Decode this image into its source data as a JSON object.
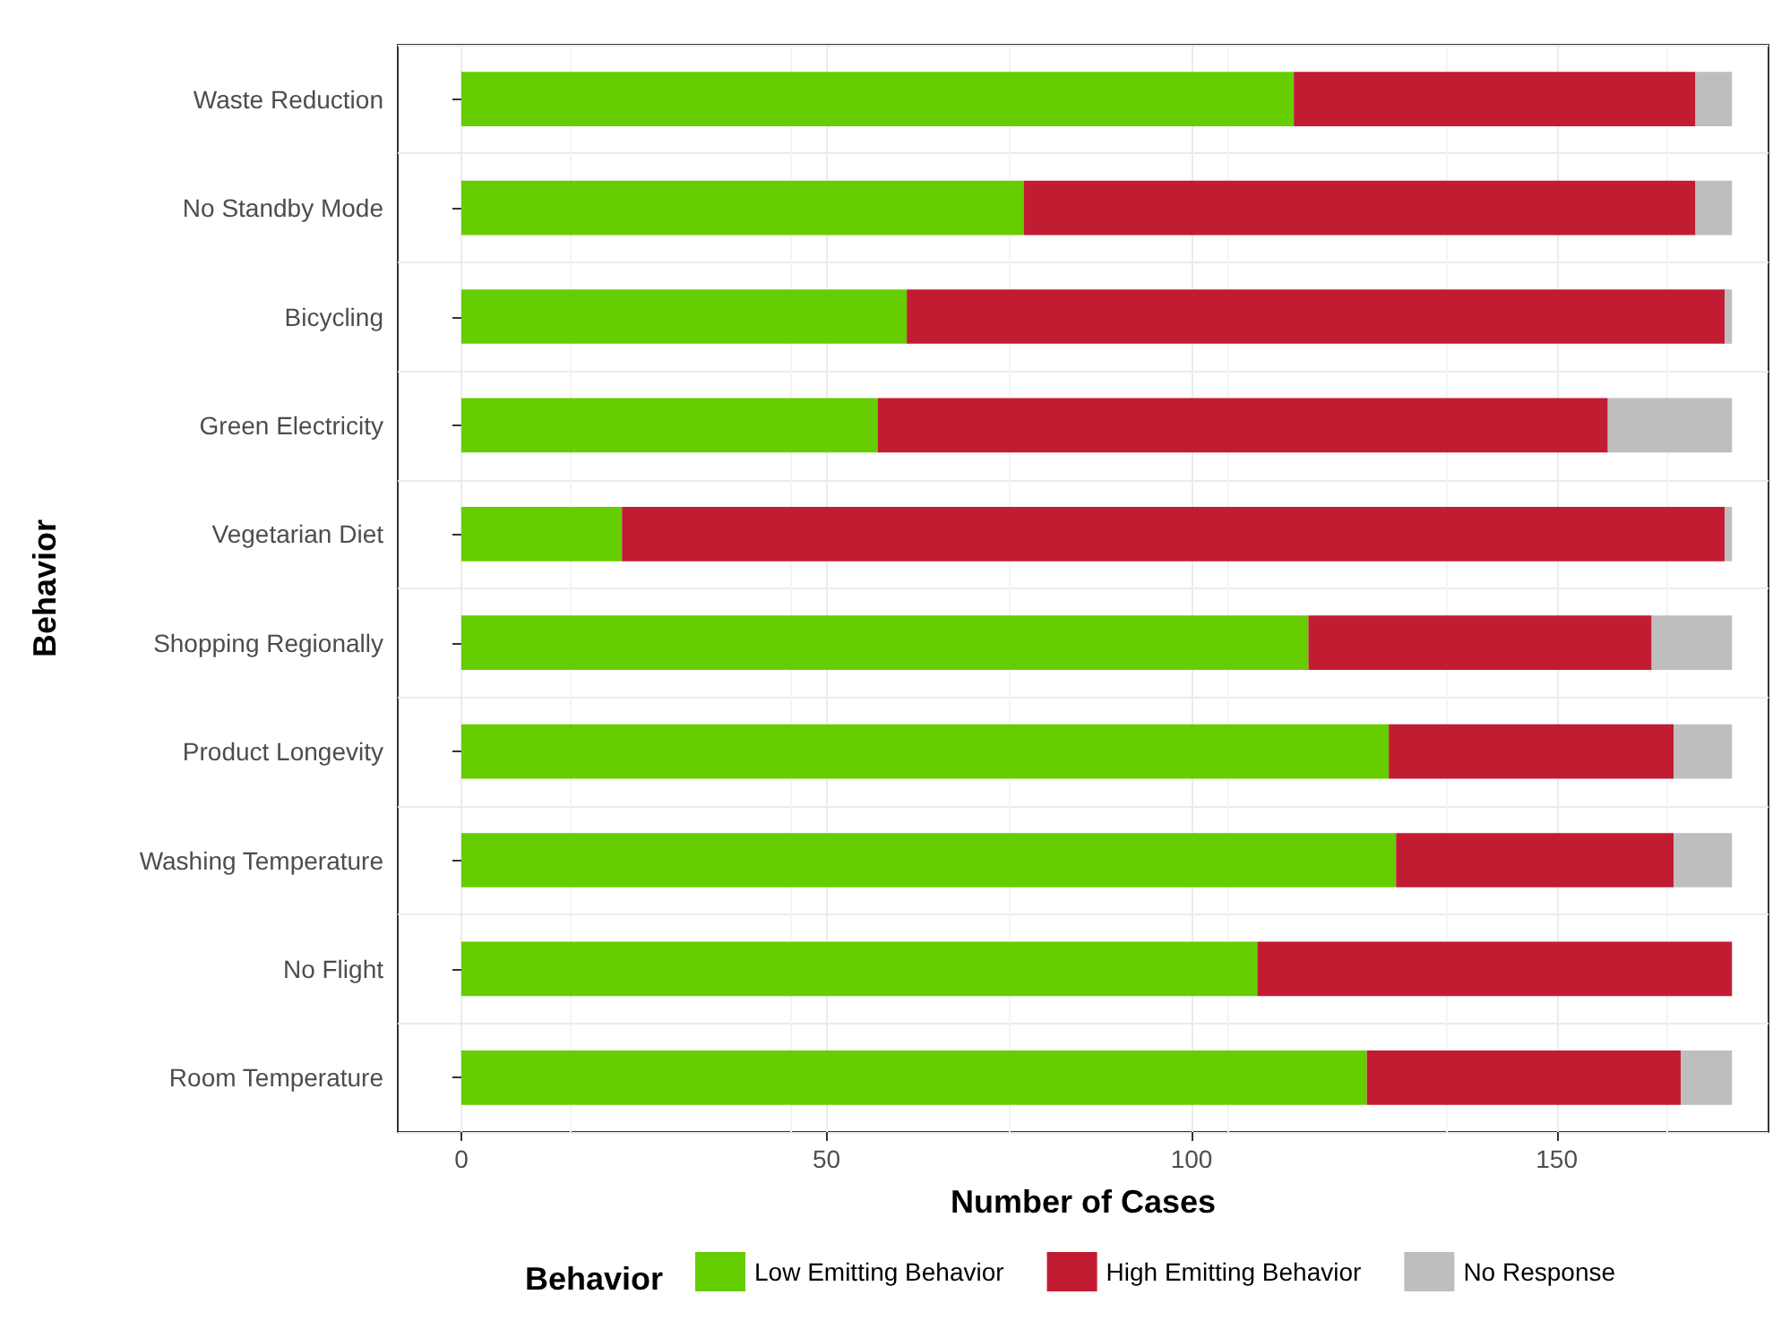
{
  "chart_data": {
    "type": "bar",
    "orientation": "horizontal",
    "stacked": true,
    "xlabel": "Number of Cases",
    "ylabel": "Behavior",
    "legend_title": "Behavior",
    "legend": "bottom",
    "grid": true,
    "categories": [
      "Waste Reduction",
      "No Standby Mode",
      "Bicycling",
      "Green Electricity",
      "Vegetarian Diet",
      "Shopping Regionally",
      "Product Longevity",
      "Washing Temperature",
      "No Flight",
      "Room Temperature"
    ],
    "series": [
      {
        "name": "Low Emitting Behavior",
        "color": "#66cd00",
        "values": [
          114,
          77,
          61,
          57,
          22,
          116,
          127,
          128,
          109,
          124
        ]
      },
      {
        "name": "High Emitting Behavior",
        "color": "#c21c33",
        "values": [
          55,
          92,
          112,
          100,
          151,
          47,
          39,
          38,
          65,
          43
        ]
      },
      {
        "name": "No Response",
        "color": "#bebebe",
        "values": [
          5,
          5,
          1,
          17,
          1,
          11,
          8,
          8,
          0,
          7
        ]
      }
    ],
    "xlim": [
      -8.7,
      179
    ],
    "xticks": [
      0,
      50,
      100,
      150
    ]
  }
}
